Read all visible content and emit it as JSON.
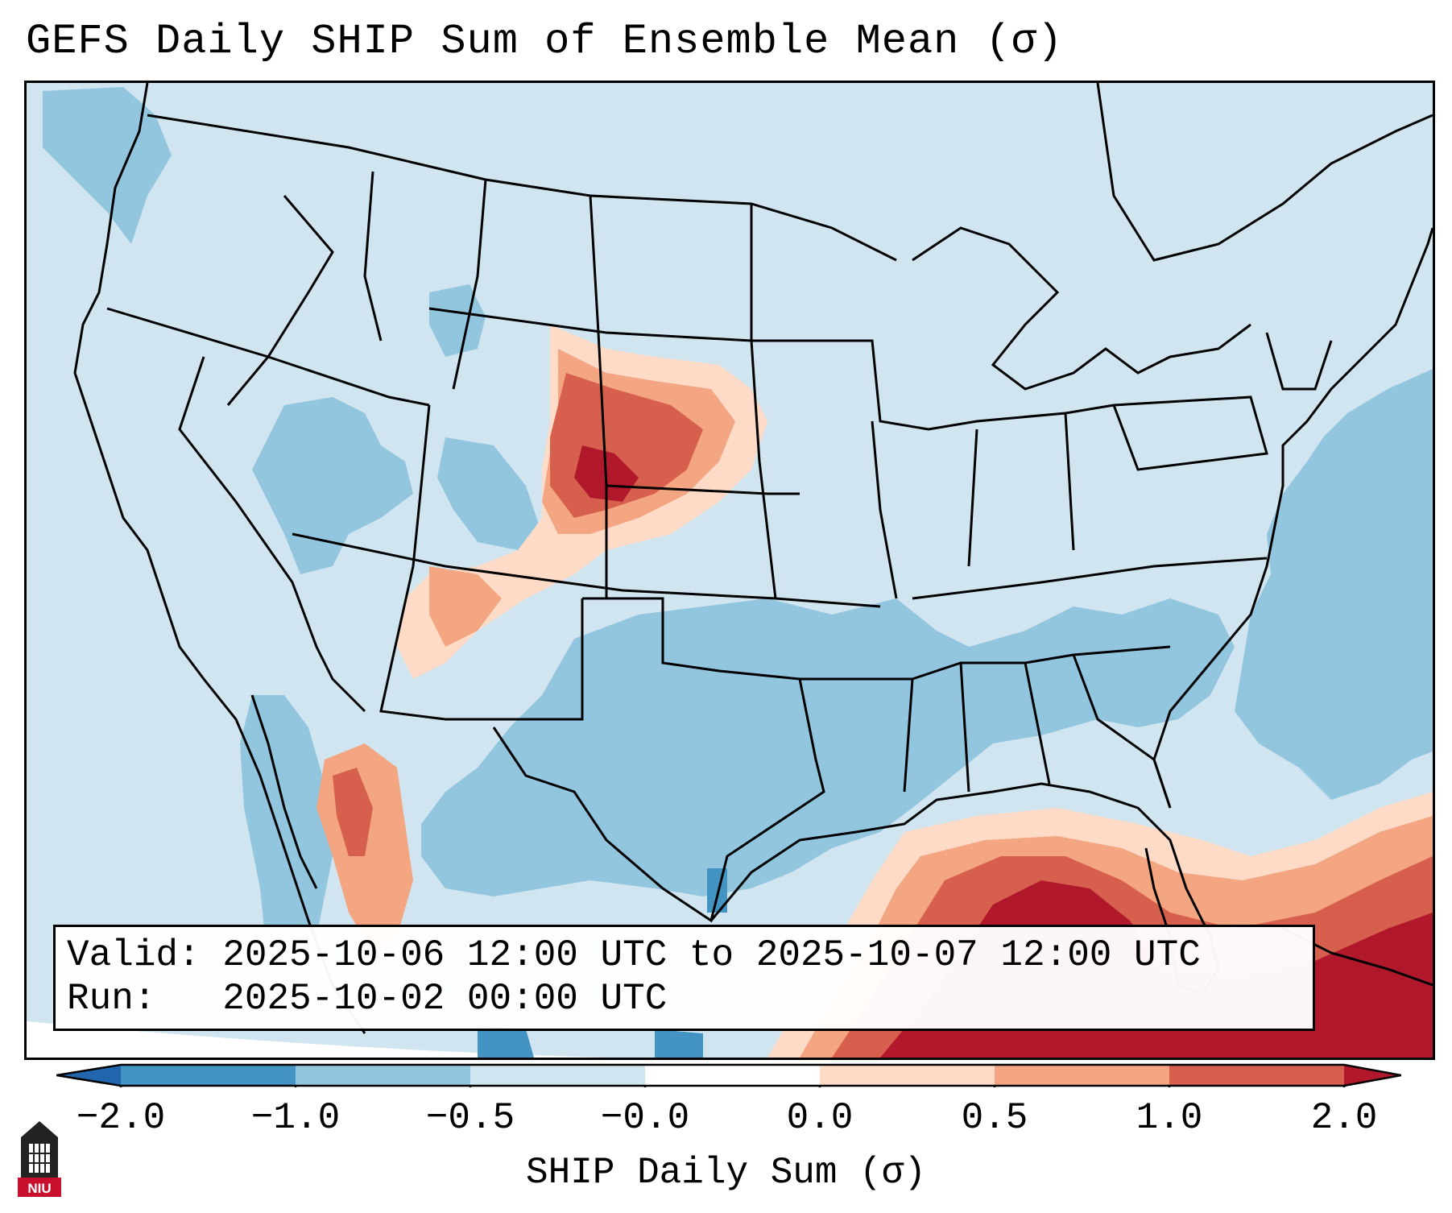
{
  "title": "GEFS Daily SHIP Sum of Ensemble Mean (σ)",
  "info": {
    "valid_line": "Valid: 2025-10-06 12:00 UTC to 2025-10-07 12:00 UTC",
    "run_line": "Run:   2025-10-02 00:00 UTC"
  },
  "colorbar": {
    "label": "SHIP Daily Sum (σ)",
    "ticks": [
      "−2.0",
      "−1.0",
      "−0.5",
      "−0.0",
      "0.0",
      "0.5",
      "1.0",
      "2.0"
    ],
    "colors": [
      "#4393c3",
      "#92c5de",
      "#d1e5f0",
      "#ffffff",
      "#fddbc7",
      "#f4a582",
      "#d6604d",
      "#b2182b"
    ],
    "extend_low_color": "#2166ac",
    "extend_high_color": "#b2182b"
  },
  "legend_colors": {
    "background_anomaly": "#d1e5f0",
    "outside_domain": "#ffffff"
  },
  "logo": {
    "text": "NIU",
    "color": "#c8102e"
  }
}
